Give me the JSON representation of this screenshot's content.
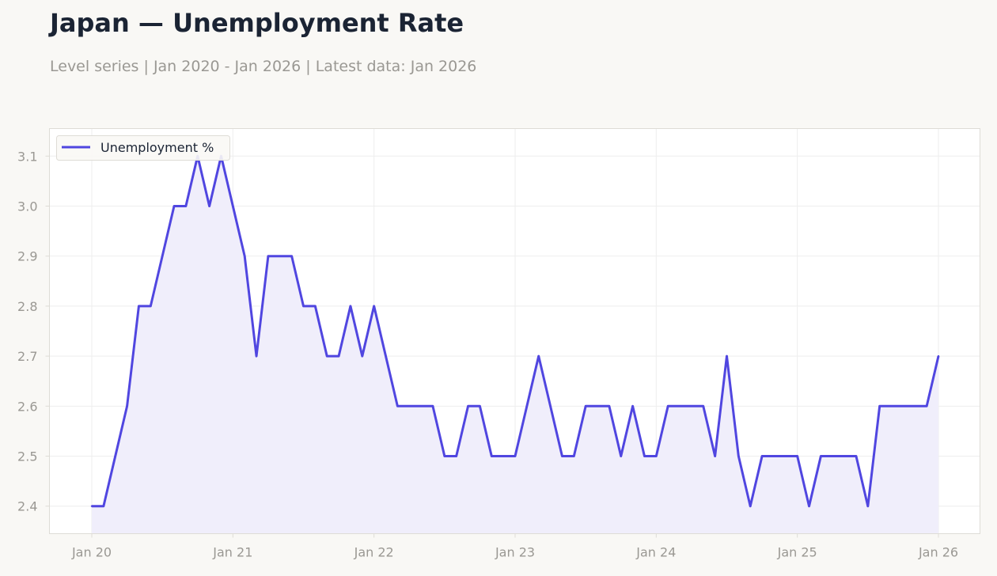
{
  "title": "Japan — Unemployment Rate",
  "subtitle": "Level series | Jan 2020 - Jan 2026 | Latest data: Jan 2026",
  "colors": {
    "line": "#5046e0",
    "fill": "#f0eefb",
    "grid": "#eeeeee",
    "frame": "#dedcd6",
    "plot_bg": "#ffffff",
    "page_bg": "#f9f8f5"
  },
  "chart_data": {
    "type": "area",
    "title": "Japan — Unemployment Rate",
    "xlabel": "",
    "ylabel": "",
    "x_start": "2020-01",
    "x_end": "2026-01",
    "x_ticks": [
      {
        "date": "2020-01",
        "label": "Jan 20"
      },
      {
        "date": "2021-01",
        "label": "Jan 21"
      },
      {
        "date": "2022-01",
        "label": "Jan 22"
      },
      {
        "date": "2023-01",
        "label": "Jan 23"
      },
      {
        "date": "2024-01",
        "label": "Jan 24"
      },
      {
        "date": "2025-01",
        "label": "Jan 25"
      },
      {
        "date": "2026-01",
        "label": "Jan 26"
      }
    ],
    "y_ticks": [
      "2.4",
      "2.5",
      "2.6",
      "2.7",
      "2.8",
      "2.9",
      "3.0",
      "3.1"
    ],
    "ylim": [
      2.345,
      3.155
    ],
    "grid": true,
    "legend_position": "top-left",
    "series": [
      {
        "name": "Unemployment %",
        "points": [
          [
            "2020-01",
            2.4
          ],
          [
            "2020-02",
            2.4
          ],
          [
            "2020-03",
            2.5
          ],
          [
            "2020-04",
            2.6
          ],
          [
            "2020-05",
            2.8
          ],
          [
            "2020-06",
            2.8
          ],
          [
            "2020-07",
            2.9
          ],
          [
            "2020-08",
            3.0
          ],
          [
            "2020-09",
            3.0
          ],
          [
            "2020-10",
            3.1
          ],
          [
            "2020-11",
            3.0
          ],
          [
            "2020-12",
            3.1
          ],
          [
            "2021-01",
            3.0
          ],
          [
            "2021-02",
            2.9
          ],
          [
            "2021-03",
            2.7
          ],
          [
            "2021-04",
            2.9
          ],
          [
            "2021-05",
            2.9
          ],
          [
            "2021-06",
            2.9
          ],
          [
            "2021-07",
            2.8
          ],
          [
            "2021-08",
            2.8
          ],
          [
            "2021-09",
            2.7
          ],
          [
            "2021-10",
            2.7
          ],
          [
            "2021-11",
            2.8
          ],
          [
            "2021-12",
            2.7
          ],
          [
            "2022-01",
            2.8
          ],
          [
            "2022-02",
            2.7
          ],
          [
            "2022-03",
            2.6
          ],
          [
            "2022-04",
            2.6
          ],
          [
            "2022-05",
            2.6
          ],
          [
            "2022-06",
            2.6
          ],
          [
            "2022-07",
            2.5
          ],
          [
            "2022-08",
            2.5
          ],
          [
            "2022-09",
            2.6
          ],
          [
            "2022-10",
            2.6
          ],
          [
            "2022-11",
            2.5
          ],
          [
            "2022-12",
            2.5
          ],
          [
            "2023-01",
            2.5
          ],
          [
            "2023-02",
            2.6
          ],
          [
            "2023-03",
            2.7
          ],
          [
            "2023-04",
            2.6
          ],
          [
            "2023-05",
            2.5
          ],
          [
            "2023-06",
            2.5
          ],
          [
            "2023-07",
            2.6
          ],
          [
            "2023-08",
            2.6
          ],
          [
            "2023-09",
            2.6
          ],
          [
            "2023-10",
            2.5
          ],
          [
            "2023-11",
            2.6
          ],
          [
            "2023-12",
            2.5
          ],
          [
            "2024-01",
            2.5
          ],
          [
            "2024-02",
            2.6
          ],
          [
            "2024-03",
            2.6
          ],
          [
            "2024-04",
            2.6
          ],
          [
            "2024-05",
            2.6
          ],
          [
            "2024-06",
            2.5
          ],
          [
            "2024-07",
            2.7
          ],
          [
            "2024-08",
            2.5
          ],
          [
            "2024-09",
            2.4
          ],
          [
            "2024-10",
            2.5
          ],
          [
            "2024-11",
            2.5
          ],
          [
            "2024-12",
            2.5
          ],
          [
            "2025-01",
            2.5
          ],
          [
            "2025-02",
            2.4
          ],
          [
            "2025-03",
            2.5
          ],
          [
            "2025-04",
            2.5
          ],
          [
            "2025-05",
            2.5
          ],
          [
            "2025-06",
            2.5
          ],
          [
            "2025-07",
            2.4
          ],
          [
            "2025-08",
            2.6
          ],
          [
            "2025-09",
            2.6
          ],
          [
            "2025-10",
            2.6
          ],
          [
            "2025-11",
            2.6
          ],
          [
            "2025-12",
            2.6
          ],
          [
            "2026-01",
            2.7
          ]
        ]
      }
    ]
  }
}
